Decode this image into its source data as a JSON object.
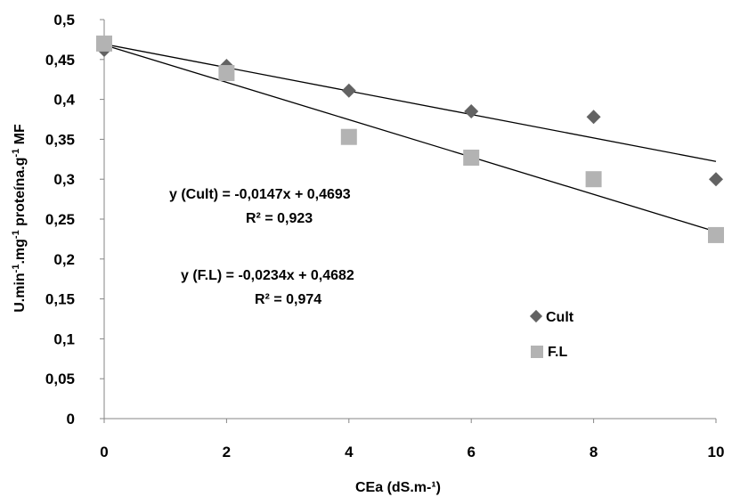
{
  "chart_data": {
    "type": "scatter",
    "xlabel": "CEa (dS.m-¹)",
    "ylabel": "U.min-1.mg-1 proteína.g-1 MF",
    "xlim": [
      0,
      10
    ],
    "ylim": [
      0,
      0.5
    ],
    "x_ticks": [
      "0",
      "2",
      "4",
      "6",
      "8",
      "10"
    ],
    "y_ticks": [
      "0",
      "0,05",
      "0,1",
      "0,15",
      "0,2",
      "0,25",
      "0,3",
      "0,35",
      "0,4",
      "0,45",
      "0,5"
    ],
    "legend_position": "right",
    "series": [
      {
        "name": "Cult",
        "marker": "diamond",
        "color": "#636363",
        "x": [
          0,
          2,
          4,
          6,
          8,
          10
        ],
        "y": [
          0.462,
          0.442,
          0.411,
          0.385,
          0.378,
          0.3
        ],
        "trendline": {
          "slope": -0.0147,
          "intercept": 0.4693
        },
        "equation": "y (Cult)  = -0,0147x + 0,4693",
        "r2": "R² = 0,923"
      },
      {
        "name": "F.L",
        "marker": "square",
        "color": "#b3b3b3",
        "x": [
          0,
          2,
          4,
          6,
          8,
          10
        ],
        "y": [
          0.47,
          0.433,
          0.353,
          0.327,
          0.3,
          0.23
        ],
        "trendline": {
          "slope": -0.0234,
          "intercept": 0.4682
        },
        "equation": "y (F.L)  = -0,0234x + 0,4682",
        "r2": "R² = 0,974"
      }
    ],
    "trendline_color": "#000000"
  }
}
